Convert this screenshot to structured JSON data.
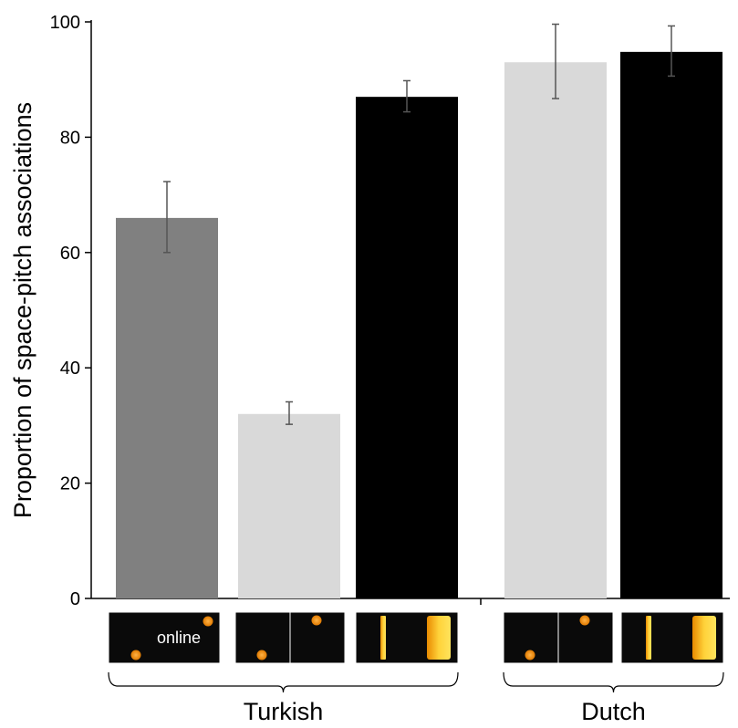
{
  "chart_data": {
    "type": "bar",
    "title": "",
    "xlabel": "",
    "ylabel": "Proportion of space-pitch associations",
    "ylim": [
      0,
      100
    ],
    "yticks": [
      0,
      20,
      40,
      60,
      80,
      100
    ],
    "grid": false,
    "groups": [
      {
        "name": "Turkish",
        "bars": [
          0,
          1,
          2
        ]
      },
      {
        "name": "Dutch",
        "bars": [
          3,
          4
        ]
      }
    ],
    "bars": [
      {
        "value": 66,
        "err_low": 60,
        "err_high": 72.3,
        "color": "#808080",
        "thumbnail": "dot-online",
        "thumbnail_text": "online"
      },
      {
        "value": 32,
        "err_low": 30.2,
        "err_high": 34.1,
        "color": "#d9d9d9",
        "thumbnail": "dot-pair"
      },
      {
        "value": 87,
        "err_low": 84.4,
        "err_high": 89.8,
        "color": "#000000",
        "thumbnail": "bar-pair"
      },
      {
        "value": 93,
        "err_low": 86.7,
        "err_high": 99.6,
        "color": "#d9d9d9",
        "thumbnail": "dot-pair"
      },
      {
        "value": 94.8,
        "err_low": 90.6,
        "err_high": 99.3,
        "color": "#000000",
        "thumbnail": "bar-pair"
      }
    ]
  }
}
